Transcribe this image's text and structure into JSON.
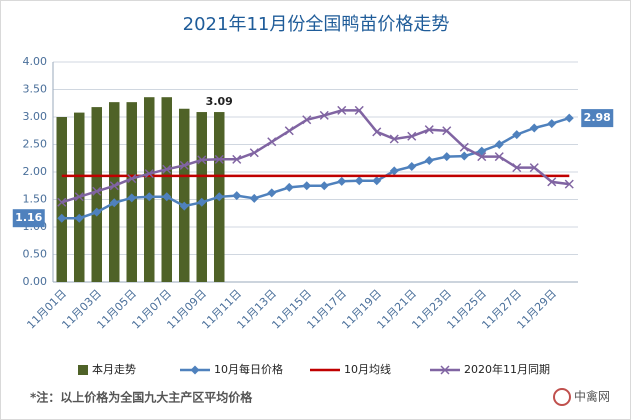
{
  "chart_data": {
    "type": "combo",
    "title": "2021年11月份全国鸭苗价格走势",
    "categories": [
      "11月01日",
      null,
      "11月03日",
      null,
      "11月05日",
      null,
      "11月07日",
      null,
      "11月09日",
      null,
      "11月11日",
      null,
      "11月13日",
      null,
      "11月15日",
      null,
      "11月17日",
      null,
      "11月19日",
      null,
      "11月21日",
      null,
      "11月23日",
      null,
      "11月25日",
      null,
      "11月27日",
      null,
      "11月29日",
      null
    ],
    "ylim": [
      0,
      4
    ],
    "yticks": [
      {
        "value": 0,
        "label": "0.00"
      },
      {
        "value": 0.5,
        "label": "0.50"
      },
      {
        "value": 1,
        "label": "1.00"
      },
      {
        "value": 1.5,
        "label": "1.50"
      },
      {
        "value": 2,
        "label": "2.00"
      },
      {
        "value": 2.5,
        "label": "2.50"
      },
      {
        "value": 3,
        "label": "3.00"
      },
      {
        "value": 3.5,
        "label": "3.50"
      },
      {
        "value": 4,
        "label": "4.00"
      }
    ],
    "series": [
      {
        "name": "本月走势",
        "kind": "bar",
        "color": "#4f6228",
        "values": [
          3.0,
          3.08,
          3.18,
          3.27,
          3.27,
          3.36,
          3.36,
          3.15,
          3.09,
          3.09,
          null,
          null,
          null,
          null,
          null,
          null,
          null,
          null,
          null,
          null,
          null,
          null,
          null,
          null,
          null,
          null,
          null,
          null,
          null,
          null
        ],
        "value_labels": [
          null,
          null,
          null,
          null,
          null,
          null,
          null,
          null,
          null,
          "3.09",
          null,
          null,
          null,
          null,
          null,
          null,
          null,
          null,
          null,
          null,
          null,
          null,
          null,
          null,
          null,
          null,
          null,
          null,
          null,
          null
        ]
      },
      {
        "name": "10月每日价格",
        "kind": "line",
        "marker": "diamond",
        "color": "#4f81bd",
        "values": [
          1.16,
          1.16,
          1.27,
          1.44,
          1.53,
          1.55,
          1.55,
          1.38,
          1.45,
          1.55,
          1.57,
          1.52,
          1.62,
          1.72,
          1.75,
          1.75,
          1.83,
          1.84,
          1.84,
          2.02,
          2.1,
          2.21,
          2.28,
          2.29,
          2.38,
          2.5,
          2.68,
          2.8,
          2.88,
          2.98
        ],
        "value_labels": [
          "1.16",
          null,
          null,
          null,
          null,
          null,
          null,
          null,
          null,
          null,
          null,
          null,
          null,
          null,
          null,
          null,
          null,
          null,
          null,
          null,
          null,
          null,
          null,
          null,
          null,
          null,
          null,
          null,
          null,
          "2.98"
        ]
      },
      {
        "name": "10月均线",
        "kind": "line",
        "marker": "none",
        "color": "#c00000",
        "values": [
          1.93,
          1.93,
          1.93,
          1.93,
          1.93,
          1.93,
          1.93,
          1.93,
          1.93,
          1.93,
          1.93,
          1.93,
          1.93,
          1.93,
          1.93,
          1.93,
          1.93,
          1.93,
          1.93,
          1.93,
          1.93,
          1.93,
          1.93,
          1.93,
          1.93,
          1.93,
          1.93,
          1.93,
          1.93,
          1.93
        ]
      },
      {
        "name": "2020年11月同期",
        "kind": "line",
        "marker": "x",
        "color": "#8064a2",
        "values": [
          1.45,
          1.55,
          1.65,
          1.75,
          1.88,
          1.97,
          2.05,
          2.12,
          2.22,
          2.23,
          2.23,
          2.35,
          2.55,
          2.75,
          2.95,
          3.03,
          3.12,
          3.12,
          2.73,
          2.6,
          2.65,
          2.77,
          2.75,
          2.45,
          2.28,
          2.28,
          2.08,
          2.08,
          1.82,
          1.78
        ]
      }
    ],
    "footnote": "*注：以上价格为全国九大主产区平均价格",
    "watermark": "中禽网"
  }
}
